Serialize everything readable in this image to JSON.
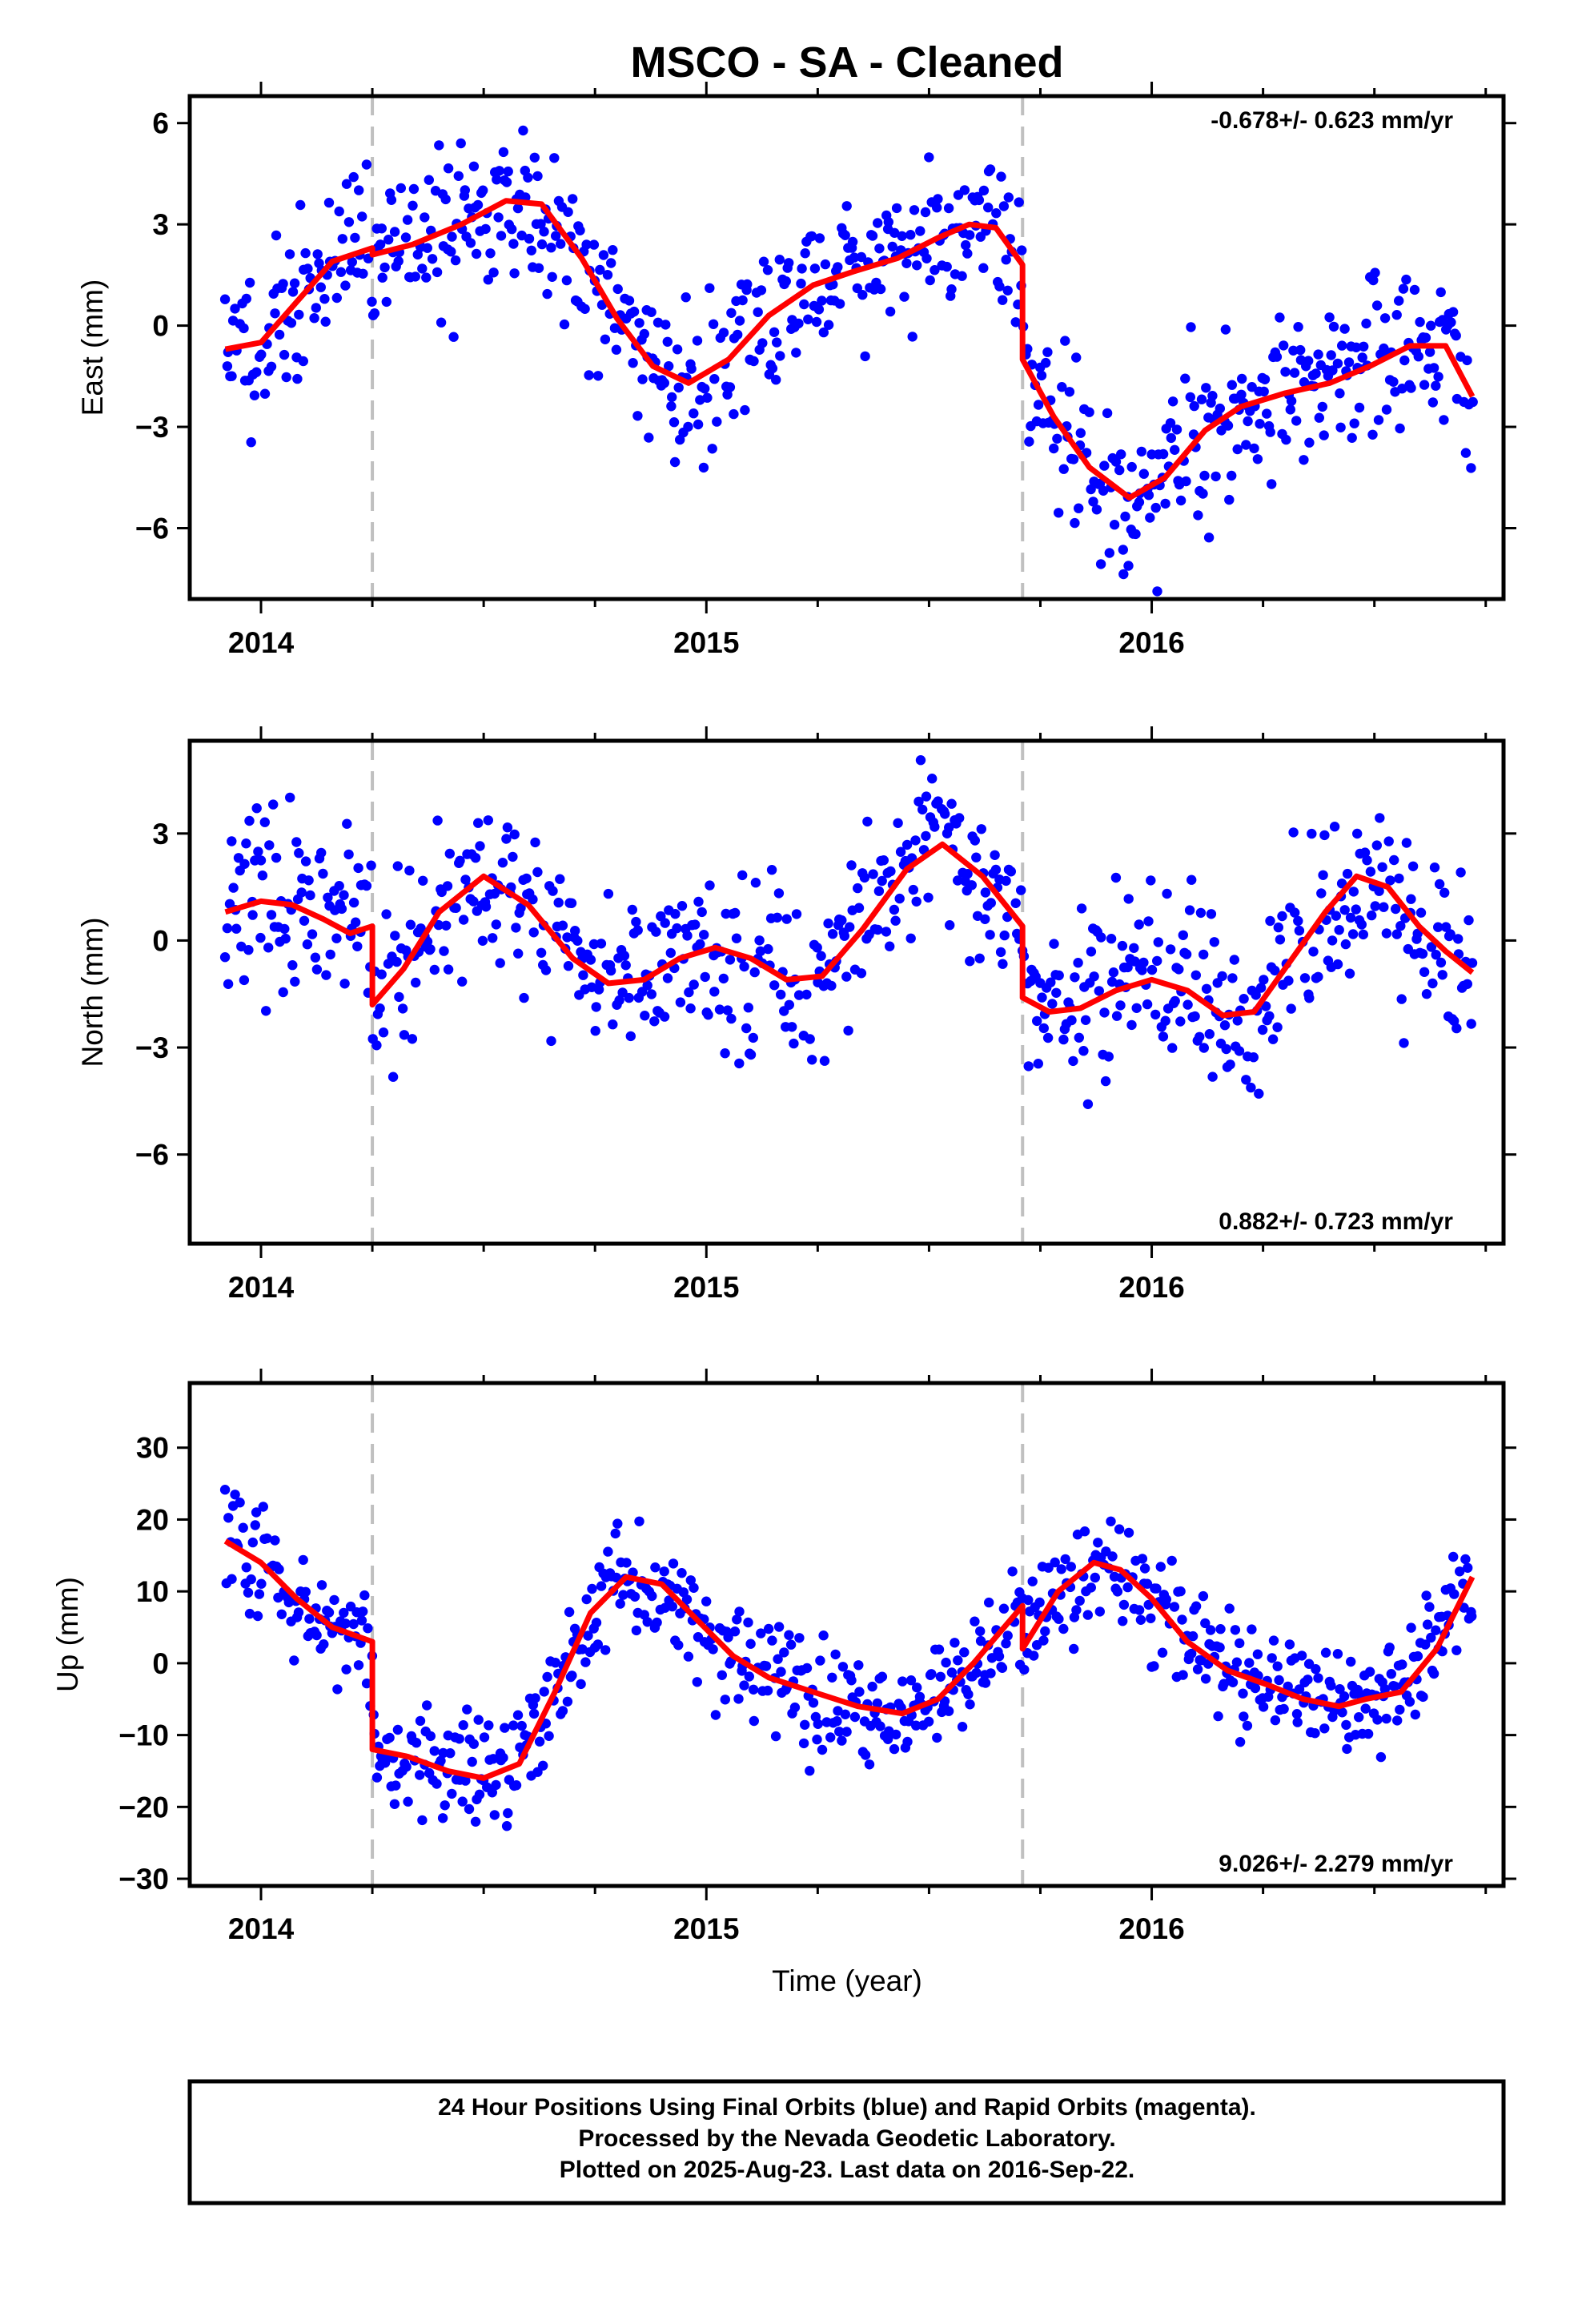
{
  "title": "MSCO  - SA - Cleaned",
  "xlabel": "Time (year)",
  "footer": {
    "lines": [
      "24 Hour Positions Using Final Orbits (blue) and Rapid Orbits (magenta).",
      "Processed by the Nevada Geodetic Laboratory.",
      "Plotted on 2025-Aug-23. Last data on 2016-Sep-22."
    ]
  },
  "colors": {
    "points": "#0000ff",
    "model": "#ff0000",
    "breaks": "#c0c0c0",
    "axes": "#000000"
  },
  "chart_data": [
    {
      "type": "scatter",
      "ylabel": "East (mm)",
      "rate_label": "-0.678+/- 0.623 mm/yr",
      "xlim": [
        2013.84,
        2016.79
      ],
      "ylim": [
        -8.1,
        6.8
      ],
      "xticks": [
        2014,
        2015,
        2016
      ],
      "yticks": [
        -6,
        -3,
        0,
        3,
        6
      ],
      "breaks": [
        2014.25,
        2015.71
      ],
      "model_x": [
        2013.92,
        2014.0,
        2014.08,
        2014.16,
        2014.25,
        2014.25,
        2014.34,
        2014.45,
        2014.55,
        2014.63,
        2014.72,
        2014.8,
        2014.88,
        2014.96,
        2015.05,
        2015.14,
        2015.24,
        2015.33,
        2015.43,
        2015.52,
        2015.59,
        2015.65,
        2015.71,
        2015.71,
        2015.78,
        2015.86,
        2015.95,
        2016.03,
        2016.12,
        2016.2,
        2016.3,
        2016.4,
        2016.49,
        2016.58,
        2016.66,
        2016.72
      ],
      "model_y": [
        -0.7,
        -0.5,
        0.7,
        1.9,
        2.3,
        2.1,
        2.4,
        3.0,
        3.7,
        3.6,
        2.0,
        0.2,
        -1.2,
        -1.7,
        -1.0,
        0.3,
        1.2,
        1.6,
        2.0,
        2.6,
        3.0,
        2.9,
        1.8,
        -1.0,
        -2.7,
        -4.2,
        -5.1,
        -4.5,
        -3.1,
        -2.4,
        -2.0,
        -1.7,
        -1.2,
        -0.6,
        -0.6,
        -2.1
      ],
      "points": {
        "x0": 2013.92,
        "x1": 2016.72,
        "n": 760,
        "noise": 1.15,
        "seed": 11
      }
    },
    {
      "type": "scatter",
      "ylabel": "North (mm)",
      "rate_label": "0.882+/- 0.723 mm/yr",
      "xlim": [
        2013.84,
        2016.79
      ],
      "ylim": [
        -8.5,
        5.6
      ],
      "xticks": [
        2014,
        2015,
        2016
      ],
      "yticks": [
        -6,
        -3,
        0,
        3
      ],
      "breaks": [
        2014.25,
        2015.71
      ],
      "model_x": [
        2013.92,
        2014.0,
        2014.07,
        2014.14,
        2014.2,
        2014.25,
        2014.25,
        2014.32,
        2014.4,
        2014.5,
        2014.6,
        2014.7,
        2014.78,
        2014.86,
        2014.94,
        2015.02,
        2015.1,
        2015.18,
        2015.26,
        2015.35,
        2015.45,
        2015.53,
        2015.62,
        2015.71,
        2015.71,
        2015.77,
        2015.84,
        2015.92,
        2016.0,
        2016.08,
        2016.16,
        2016.23,
        2016.31,
        2016.39,
        2016.46,
        2016.53,
        2016.6,
        2016.66,
        2016.72
      ],
      "model_y": [
        0.8,
        1.1,
        1.0,
        0.6,
        0.2,
        0.4,
        -1.8,
        -0.8,
        0.8,
        1.8,
        1.0,
        -0.5,
        -1.2,
        -1.1,
        -0.5,
        -0.2,
        -0.5,
        -1.1,
        -1.0,
        0.3,
        2.0,
        2.7,
        1.8,
        0.4,
        -1.6,
        -2.0,
        -1.9,
        -1.4,
        -1.1,
        -1.4,
        -2.1,
        -2.0,
        -0.6,
        0.8,
        1.8,
        1.5,
        0.4,
        -0.3,
        -0.9
      ],
      "points": {
        "x0": 2013.92,
        "x1": 2016.72,
        "n": 760,
        "noise": 1.2,
        "seed": 23
      }
    },
    {
      "type": "scatter",
      "ylabel": "Up (mm)",
      "rate_label": "9.026+/- 2.279 mm/yr",
      "xlim": [
        2013.84,
        2016.79
      ],
      "ylim": [
        -31,
        39
      ],
      "xticks": [
        2014,
        2015,
        2016
      ],
      "yticks": [
        -30,
        -20,
        -10,
        0,
        10,
        20,
        30
      ],
      "breaks": [
        2014.25,
        2015.71
      ],
      "model_x": [
        2013.92,
        2014.0,
        2014.08,
        2014.16,
        2014.25,
        2014.25,
        2014.33,
        2014.42,
        2014.5,
        2014.58,
        2014.66,
        2014.74,
        2014.82,
        2014.9,
        2014.98,
        2015.06,
        2015.14,
        2015.24,
        2015.34,
        2015.44,
        2015.52,
        2015.6,
        2015.71,
        2015.71,
        2015.79,
        2015.87,
        2015.93,
        2016.0,
        2016.08,
        2016.17,
        2016.26,
        2016.34,
        2016.42,
        2016.48,
        2016.56,
        2016.64,
        2016.72
      ],
      "model_y": [
        17,
        14,
        9,
        5,
        3,
        -12,
        -13,
        -15,
        -16,
        -14,
        -4,
        7,
        12,
        11,
        6,
        1,
        -2,
        -4,
        -6,
        -7,
        -5,
        0,
        8,
        2,
        10,
        14,
        13,
        9,
        3,
        -1,
        -3,
        -5,
        -6,
        -5,
        -4,
        2,
        12
      ],
      "points": {
        "x0": 2013.92,
        "x1": 2016.72,
        "n": 760,
        "noise": 3.8,
        "seed": 37
      }
    }
  ]
}
